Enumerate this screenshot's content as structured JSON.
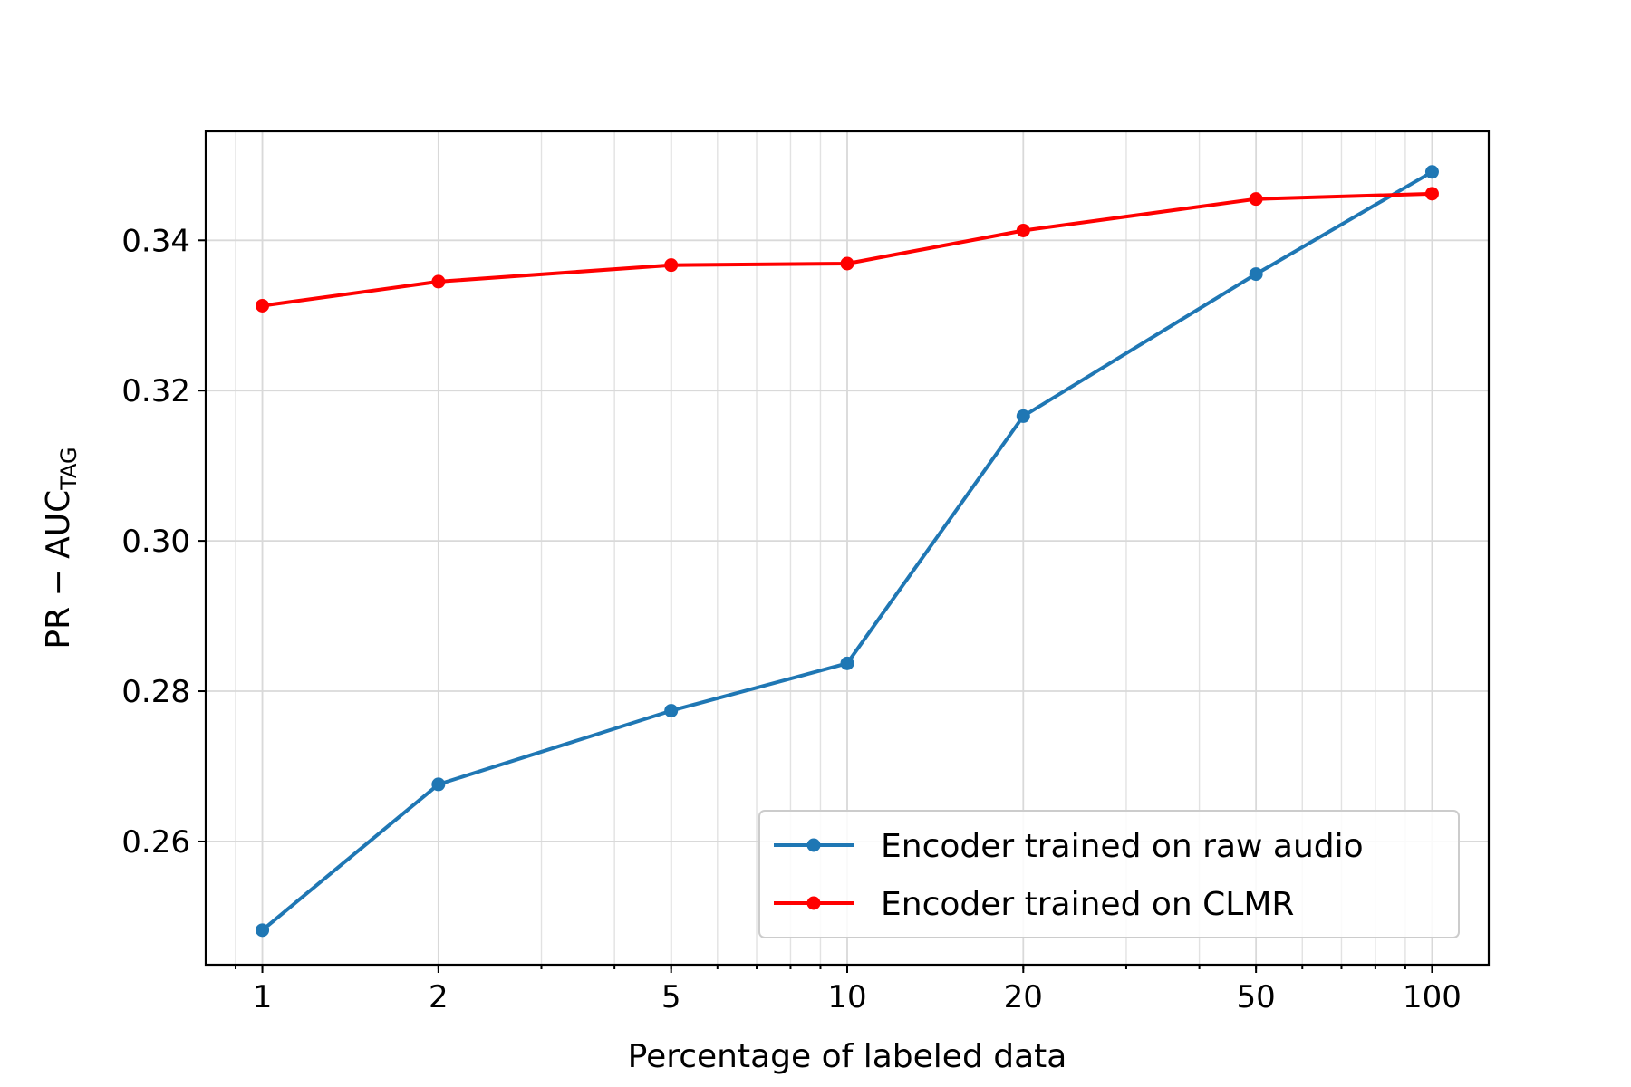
{
  "chart_data": {
    "type": "line",
    "xlabel": "Percentage of labeled data",
    "ylabel_main": "PR − AUC",
    "ylabel_sub": "TAG",
    "x_scale": "log",
    "xlim": [
      0.8,
      125
    ],
    "ylim": [
      0.2436,
      0.3545
    ],
    "x_ticks": [
      1,
      2,
      5,
      10,
      20,
      50,
      100
    ],
    "x_tick_labels": [
      "1",
      "2",
      "5",
      "10",
      "20",
      "50",
      "100"
    ],
    "y_ticks": [
      0.26,
      0.28,
      0.3,
      0.32,
      0.34
    ],
    "y_tick_labels": [
      "0.26",
      "0.28",
      "0.30",
      "0.32",
      "0.34"
    ],
    "grid": "major and minor",
    "legend_position": "lower-right",
    "x": [
      1,
      2,
      5,
      10,
      20,
      50,
      100
    ],
    "series": [
      {
        "name": "Encoder trained on raw audio",
        "color": "#1f77b4",
        "marker": "circle",
        "values": [
          0.2482,
          0.2676,
          0.2774,
          0.2837,
          0.3166,
          0.3355,
          0.3491
        ]
      },
      {
        "name": "Encoder trained on CLMR",
        "color": "#ff0000",
        "marker": "circle",
        "values": [
          0.3313,
          0.3345,
          0.3367,
          0.3369,
          0.3413,
          0.3455,
          0.3462
        ]
      }
    ]
  }
}
